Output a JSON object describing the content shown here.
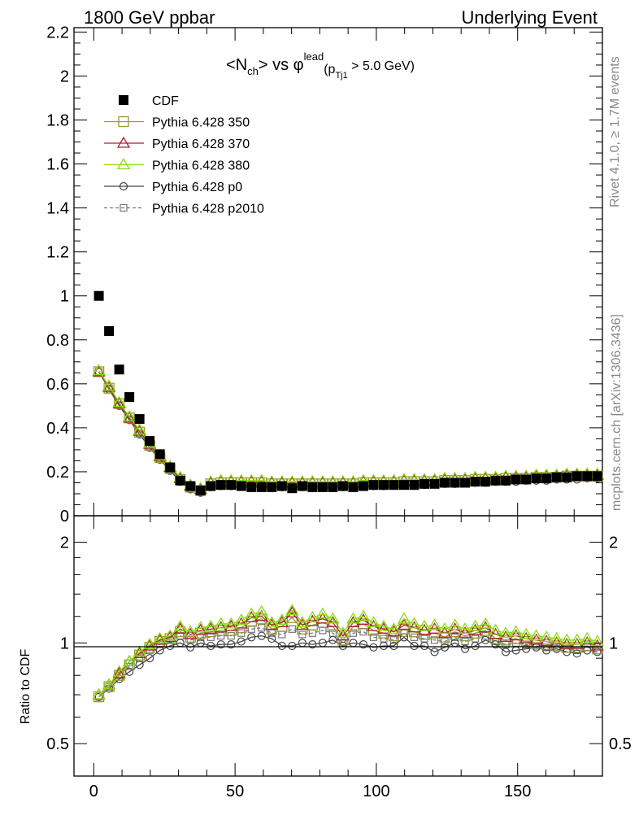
{
  "header": {
    "left_title": "1800 GeV ppbar",
    "right_title": "Underlying Event"
  },
  "plot_title": {
    "lt": "<",
    "n": "N",
    "ch": "ch",
    "gt_vs": "> vs ",
    "phi": "φ",
    "lead": "lead",
    "paren_p": "(p",
    "tj1": "Tj1",
    "cut": " > 5.0 GeV)"
  },
  "side_labels": {
    "top": "Rivet 4.1.0, ≥ 1.7M events",
    "bottom": "mcplots.cern.ch [arXiv:1306.3436]"
  },
  "ratio_ylabel": "Ratio to CDF",
  "colors": {
    "cdf": "#000000",
    "p350": "#999933",
    "p370": "#aa2233",
    "p380": "#88dd11",
    "p0": "#444444",
    "p2010": "#777777"
  },
  "chart_data": [
    {
      "type": "scatter",
      "panel": "main",
      "xlim": [
        -7,
        180
      ],
      "ylim": [
        0,
        2.22
      ],
      "ytick_labels": [
        "0",
        "0.2",
        "0.4",
        "0.6",
        "0.8",
        "1",
        "1.2",
        "1.4",
        "1.6",
        "1.8",
        "2",
        "2.2"
      ],
      "legend": [
        "CDF",
        "Pythia 6.428 350",
        "Pythia 6.428 370",
        "Pythia 6.428 380",
        "Pythia 6.428 p0",
        "Pythia 6.428 p2010"
      ],
      "x": [
        1.8,
        5.4,
        9.0,
        12.6,
        16.2,
        19.8,
        23.4,
        27.0,
        30.6,
        34.2,
        37.8,
        41.4,
        45.0,
        48.6,
        52.2,
        55.8,
        59.4,
        63.0,
        66.6,
        70.2,
        73.8,
        77.4,
        81.0,
        84.6,
        88.2,
        91.8,
        95.4,
        99.0,
        102.6,
        106.2,
        109.8,
        113.4,
        117.0,
        120.6,
        124.2,
        127.8,
        131.4,
        135.0,
        138.6,
        142.2,
        145.8,
        149.4,
        153.0,
        156.6,
        160.2,
        163.8,
        167.4,
        171.0,
        174.6,
        178.2
      ],
      "series": [
        {
          "name": "CDF",
          "values": [
            1.0,
            0.84,
            0.665,
            0.54,
            0.44,
            0.34,
            0.28,
            0.22,
            0.16,
            0.135,
            0.115,
            0.135,
            0.14,
            0.14,
            0.135,
            0.13,
            0.13,
            0.13,
            0.135,
            0.125,
            0.135,
            0.13,
            0.13,
            0.13,
            0.135,
            0.13,
            0.135,
            0.14,
            0.14,
            0.14,
            0.14,
            0.14,
            0.145,
            0.145,
            0.15,
            0.15,
            0.15,
            0.155,
            0.155,
            0.16,
            0.16,
            0.165,
            0.165,
            0.17,
            0.17,
            0.175,
            0.175,
            0.18,
            0.18,
            0.18
          ]
        },
        {
          "name": "Pythia 6.428 350",
          "values": [
            0.655,
            0.58,
            0.51,
            0.445,
            0.38,
            0.32,
            0.265,
            0.215,
            0.165,
            0.13,
            0.115,
            0.145,
            0.15,
            0.15,
            0.15,
            0.15,
            0.15,
            0.145,
            0.145,
            0.145,
            0.145,
            0.145,
            0.145,
            0.145,
            0.145,
            0.145,
            0.15,
            0.15,
            0.15,
            0.15,
            0.155,
            0.155,
            0.155,
            0.155,
            0.16,
            0.16,
            0.16,
            0.165,
            0.165,
            0.165,
            0.17,
            0.17,
            0.17,
            0.175,
            0.175,
            0.175,
            0.18,
            0.18,
            0.18,
            0.18
          ]
        },
        {
          "name": "Pythia 6.428 370",
          "values": [
            0.655,
            0.585,
            0.51,
            0.445,
            0.385,
            0.325,
            0.27,
            0.22,
            0.17,
            0.135,
            0.12,
            0.15,
            0.155,
            0.155,
            0.155,
            0.155,
            0.155,
            0.15,
            0.15,
            0.15,
            0.15,
            0.15,
            0.15,
            0.15,
            0.15,
            0.15,
            0.155,
            0.155,
            0.155,
            0.155,
            0.16,
            0.16,
            0.16,
            0.16,
            0.165,
            0.165,
            0.165,
            0.17,
            0.17,
            0.17,
            0.175,
            0.175,
            0.175,
            0.18,
            0.18,
            0.18,
            0.185,
            0.185,
            0.185,
            0.185
          ]
        },
        {
          "name": "Pythia 6.428 380",
          "values": [
            0.66,
            0.59,
            0.515,
            0.45,
            0.39,
            0.33,
            0.275,
            0.225,
            0.175,
            0.14,
            0.125,
            0.155,
            0.16,
            0.16,
            0.16,
            0.16,
            0.16,
            0.155,
            0.155,
            0.155,
            0.155,
            0.155,
            0.155,
            0.155,
            0.155,
            0.155,
            0.16,
            0.16,
            0.16,
            0.16,
            0.165,
            0.165,
            0.165,
            0.165,
            0.17,
            0.17,
            0.17,
            0.175,
            0.175,
            0.175,
            0.18,
            0.18,
            0.18,
            0.185,
            0.185,
            0.185,
            0.19,
            0.19,
            0.19,
            0.19
          ]
        },
        {
          "name": "Pythia 6.428 p0",
          "values": [
            0.655,
            0.575,
            0.5,
            0.435,
            0.37,
            0.31,
            0.255,
            0.205,
            0.155,
            0.12,
            0.105,
            0.13,
            0.135,
            0.135,
            0.135,
            0.135,
            0.135,
            0.13,
            0.13,
            0.13,
            0.13,
            0.13,
            0.13,
            0.13,
            0.13,
            0.13,
            0.135,
            0.135,
            0.135,
            0.14,
            0.14,
            0.14,
            0.14,
            0.145,
            0.145,
            0.145,
            0.15,
            0.15,
            0.15,
            0.155,
            0.155,
            0.155,
            0.16,
            0.16,
            0.16,
            0.165,
            0.165,
            0.165,
            0.17,
            0.17
          ]
        },
        {
          "name": "Pythia 6.428 p2010",
          "values": [
            0.655,
            0.58,
            0.505,
            0.44,
            0.375,
            0.315,
            0.26,
            0.21,
            0.16,
            0.125,
            0.11,
            0.14,
            0.145,
            0.145,
            0.145,
            0.14,
            0.14,
            0.14,
            0.14,
            0.14,
            0.14,
            0.14,
            0.14,
            0.14,
            0.14,
            0.14,
            0.145,
            0.145,
            0.145,
            0.145,
            0.15,
            0.15,
            0.15,
            0.15,
            0.155,
            0.155,
            0.155,
            0.16,
            0.16,
            0.16,
            0.165,
            0.165,
            0.165,
            0.17,
            0.17,
            0.17,
            0.175,
            0.175,
            0.175,
            0.175
          ]
        }
      ]
    },
    {
      "type": "line",
      "panel": "ratio",
      "ylabel": "Ratio to CDF",
      "xlim": [
        -7,
        180
      ],
      "ylim": [
        0.4,
        2.4
      ],
      "ytick_labels": [
        "0.5",
        "1",
        "2"
      ],
      "xtick_labels": [
        "0",
        "50",
        "100",
        "150"
      ],
      "x": [
        1.8,
        5.4,
        9.0,
        12.6,
        16.2,
        19.8,
        23.4,
        27.0,
        30.6,
        34.2,
        37.8,
        41.4,
        45.0,
        48.6,
        52.2,
        55.8,
        59.4,
        63.0,
        66.6,
        70.2,
        73.8,
        77.4,
        81.0,
        84.6,
        88.2,
        91.8,
        95.4,
        99.0,
        102.6,
        106.2,
        109.8,
        113.4,
        117.0,
        120.6,
        124.2,
        127.8,
        131.4,
        135.0,
        138.6,
        142.2,
        145.8,
        149.4,
        153.0,
        156.6,
        160.2,
        163.8,
        167.4,
        171.0,
        174.6,
        178.2
      ],
      "series": [
        {
          "name": "Pythia 6.428 350",
          "values": [
            0.69,
            0.74,
            0.8,
            0.86,
            0.92,
            0.97,
            1.01,
            1.03,
            1.08,
            1.04,
            1.07,
            1.08,
            1.09,
            1.09,
            1.11,
            1.16,
            1.18,
            1.1,
            1.12,
            1.19,
            1.1,
            1.13,
            1.15,
            1.12,
            1.02,
            1.12,
            1.14,
            1.09,
            1.07,
            1.05,
            1.1,
            1.08,
            1.06,
            1.07,
            1.04,
            1.08,
            1.05,
            1.07,
            1.09,
            1.03,
            1.02,
            1.03,
            1.01,
            1.0,
            0.99,
            0.98,
            0.97,
            0.97,
            0.98,
            0.96
          ]
        },
        {
          "name": "Pythia 6.428 370",
          "values": [
            0.7,
            0.75,
            0.81,
            0.88,
            0.93,
            0.98,
            1.02,
            1.04,
            1.1,
            1.06,
            1.09,
            1.1,
            1.11,
            1.12,
            1.14,
            1.19,
            1.2,
            1.13,
            1.15,
            1.23,
            1.13,
            1.16,
            1.18,
            1.15,
            1.05,
            1.15,
            1.17,
            1.12,
            1.1,
            1.08,
            1.13,
            1.11,
            1.09,
            1.1,
            1.07,
            1.1,
            1.07,
            1.09,
            1.11,
            1.06,
            1.04,
            1.05,
            1.03,
            1.02,
            1.01,
            1.0,
            0.99,
            0.99,
            1.0,
            0.98
          ]
        },
        {
          "name": "Pythia 6.428 380",
          "values": [
            0.7,
            0.75,
            0.82,
            0.88,
            0.94,
            0.99,
            1.03,
            1.05,
            1.12,
            1.08,
            1.11,
            1.12,
            1.14,
            1.14,
            1.17,
            1.22,
            1.24,
            1.15,
            1.17,
            1.25,
            1.15,
            1.19,
            1.22,
            1.18,
            1.07,
            1.18,
            1.2,
            1.15,
            1.12,
            1.1,
            1.18,
            1.14,
            1.12,
            1.13,
            1.1,
            1.13,
            1.1,
            1.12,
            1.14,
            1.09,
            1.07,
            1.08,
            1.06,
            1.05,
            1.04,
            1.03,
            1.02,
            1.02,
            1.03,
            1.01
          ]
        },
        {
          "name": "Pythia 6.428 p0",
          "values": [
            0.69,
            0.73,
            0.78,
            0.82,
            0.86,
            0.9,
            0.95,
            0.98,
            1.0,
            0.97,
            1.0,
            0.98,
            0.99,
            0.99,
            1.01,
            1.04,
            1.05,
            1.03,
            0.98,
            0.98,
            1.0,
            0.99,
            1.0,
            1.02,
            0.98,
            1.0,
            0.99,
            0.97,
            0.98,
            0.98,
            1.04,
            0.98,
            0.98,
            0.94,
            0.97,
            1.0,
            0.96,
            0.98,
            1.02,
            0.99,
            0.94,
            0.95,
            0.96,
            0.97,
            0.95,
            0.96,
            0.94,
            0.93,
            0.95,
            0.94
          ]
        },
        {
          "name": "Pythia 6.428 p2010",
          "values": [
            0.69,
            0.74,
            0.8,
            0.85,
            0.9,
            0.95,
            0.99,
            1.02,
            1.05,
            1.02,
            1.04,
            1.04,
            1.05,
            1.05,
            1.07,
            1.1,
            1.11,
            1.07,
            1.06,
            1.1,
            1.06,
            1.07,
            1.09,
            1.07,
            1.0,
            1.07,
            1.08,
            1.04,
            1.03,
            1.02,
            1.07,
            1.04,
            1.03,
            1.02,
            1.01,
            1.04,
            1.01,
            1.03,
            1.05,
            1.01,
            0.99,
            1.0,
            0.99,
            0.98,
            0.97,
            0.97,
            0.96,
            0.95,
            0.97,
            0.95
          ]
        }
      ]
    }
  ]
}
